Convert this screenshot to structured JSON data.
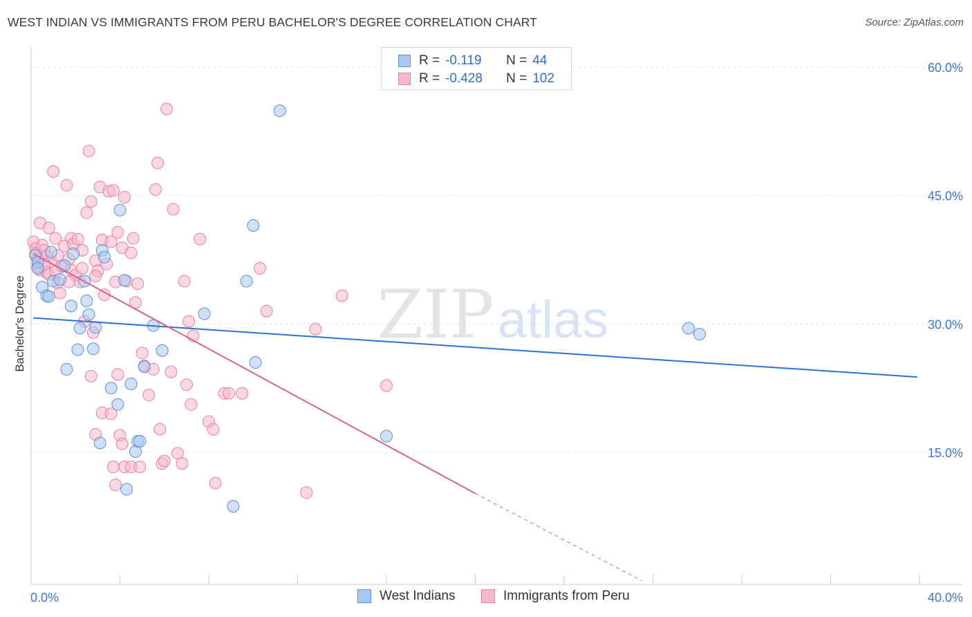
{
  "header": {
    "title": "WEST INDIAN VS IMMIGRANTS FROM PERU BACHELOR'S DEGREE CORRELATION CHART",
    "source": "Source: ZipAtlas.com"
  },
  "colors": {
    "blue_fill": "#a9c8f0",
    "blue_stroke": "#5a8fd8",
    "blue_line": "#2b72d0",
    "pink_fill": "#f6b8cb",
    "pink_stroke": "#e87fa1",
    "pink_line": "#e0608c",
    "grid": "#e3e3e3",
    "axis_label": "#3a76d6"
  },
  "legend": {
    "rows": [
      {
        "r_label": "R =",
        "r_value": "-0.119",
        "n_label": "N =",
        "n_value": "44"
      },
      {
        "r_label": "R =",
        "r_value": "-0.428",
        "n_label": "N =",
        "n_value": "102"
      }
    ]
  },
  "bottom_legend": {
    "items": [
      "West Indians",
      "Immigrants from Peru"
    ]
  },
  "watermark": {
    "zip": "ZIP",
    "atlas": "atlas"
  },
  "chart_data": {
    "type": "scatter",
    "title": "WEST INDIAN VS IMMIGRANTS FROM PERU BACHELOR'S DEGREE CORRELATION CHART",
    "xlabel": "",
    "ylabel": "Bachelor's Degree",
    "xlim": [
      0,
      40
    ],
    "ylim": [
      0,
      62
    ],
    "x_tick_labels": [
      "0.0%",
      "40.0%"
    ],
    "y_ticks": [
      15,
      30,
      45,
      60
    ],
    "y_tick_labels": [
      "15.0%",
      "30.0%",
      "45.0%",
      "60.0%"
    ],
    "grid": true,
    "legend_position": "top-center",
    "series": [
      {
        "name": "West Indians",
        "R": -0.119,
        "N": 44,
        "trend": {
          "x0": 0.1,
          "y0": 30.7,
          "x1": 39.9,
          "y1": 23.8
        },
        "points": [
          [
            0.2,
            38.0
          ],
          [
            0.3,
            37.2
          ],
          [
            0.3,
            36.5
          ],
          [
            0.5,
            34.3
          ],
          [
            0.7,
            33.3
          ],
          [
            0.8,
            33.2
          ],
          [
            0.9,
            38.4
          ],
          [
            1.0,
            35.0
          ],
          [
            1.3,
            35.2
          ],
          [
            1.5,
            36.8
          ],
          [
            1.8,
            32.1
          ],
          [
            1.9,
            38.2
          ],
          [
            2.1,
            27.0
          ],
          [
            2.2,
            29.5
          ],
          [
            2.4,
            35.0
          ],
          [
            2.5,
            32.7
          ],
          [
            2.6,
            31.1
          ],
          [
            2.8,
            27.1
          ],
          [
            2.9,
            29.6
          ],
          [
            3.1,
            16.1
          ],
          [
            3.2,
            38.6
          ],
          [
            3.3,
            37.8
          ],
          [
            3.6,
            22.5
          ],
          [
            3.9,
            20.6
          ],
          [
            4.0,
            43.3
          ],
          [
            4.2,
            35.1
          ],
          [
            4.3,
            10.7
          ],
          [
            4.5,
            23.0
          ],
          [
            4.7,
            15.1
          ],
          [
            4.8,
            16.3
          ],
          [
            4.9,
            16.3
          ],
          [
            5.1,
            25.0
          ],
          [
            5.5,
            29.8
          ],
          [
            5.9,
            26.9
          ],
          [
            7.8,
            31.2
          ],
          [
            9.1,
            8.7
          ],
          [
            9.7,
            35.0
          ],
          [
            10.0,
            41.5
          ],
          [
            10.1,
            25.5
          ],
          [
            11.2,
            54.9
          ],
          [
            16.0,
            16.9
          ],
          [
            29.6,
            29.5
          ],
          [
            30.1,
            28.8
          ],
          [
            1.6,
            24.7
          ]
        ]
      },
      {
        "name": "Immigrants from Peru",
        "R": -0.428,
        "N": 102,
        "trend": {
          "x0": 0.1,
          "y0": 38.2,
          "x1": 20.0,
          "y1": 10.2
        },
        "trend_dashed_to": {
          "x": 27.5,
          "y": 0.0
        },
        "points": [
          [
            0.1,
            39.6
          ],
          [
            0.2,
            38.8
          ],
          [
            0.2,
            38.2
          ],
          [
            0.3,
            37.6
          ],
          [
            0.3,
            36.7
          ],
          [
            0.4,
            41.8
          ],
          [
            0.4,
            36.3
          ],
          [
            0.5,
            39.2
          ],
          [
            0.6,
            38.6
          ],
          [
            0.7,
            37.9
          ],
          [
            0.7,
            36.0
          ],
          [
            0.8,
            41.2
          ],
          [
            0.8,
            35.8
          ],
          [
            0.9,
            37.3
          ],
          [
            1.0,
            47.8
          ],
          [
            1.1,
            40.0
          ],
          [
            1.1,
            36.1
          ],
          [
            1.2,
            34.8
          ],
          [
            1.3,
            33.6
          ],
          [
            1.4,
            36.7
          ],
          [
            1.5,
            39.1
          ],
          [
            1.6,
            46.2
          ],
          [
            1.7,
            37.6
          ],
          [
            1.8,
            36.3
          ],
          [
            1.8,
            40.0
          ],
          [
            1.9,
            39.3
          ],
          [
            2.0,
            35.7
          ],
          [
            2.1,
            39.9
          ],
          [
            2.2,
            34.9
          ],
          [
            2.3,
            38.6
          ],
          [
            2.4,
            30.3
          ],
          [
            2.5,
            43.0
          ],
          [
            2.6,
            50.2
          ],
          [
            2.7,
            44.3
          ],
          [
            2.8,
            29.0
          ],
          [
            2.9,
            37.4
          ],
          [
            3.0,
            36.2
          ],
          [
            3.1,
            46.0
          ],
          [
            3.2,
            39.8
          ],
          [
            3.3,
            33.4
          ],
          [
            3.4,
            37.0
          ],
          [
            3.5,
            45.5
          ],
          [
            3.6,
            39.6
          ],
          [
            3.7,
            45.6
          ],
          [
            3.8,
            34.9
          ],
          [
            3.9,
            40.7
          ],
          [
            4.1,
            38.9
          ],
          [
            4.2,
            44.8
          ],
          [
            4.3,
            35.0
          ],
          [
            4.5,
            38.3
          ],
          [
            4.7,
            32.5
          ],
          [
            4.8,
            34.7
          ],
          [
            5.0,
            26.6
          ],
          [
            5.1,
            25.1
          ],
          [
            5.3,
            21.7
          ],
          [
            5.5,
            24.7
          ],
          [
            5.6,
            45.7
          ],
          [
            5.7,
            48.8
          ],
          [
            5.8,
            17.7
          ],
          [
            5.9,
            13.7
          ],
          [
            6.0,
            14.0
          ],
          [
            6.1,
            55.1
          ],
          [
            6.3,
            24.4
          ],
          [
            6.4,
            43.4
          ],
          [
            6.6,
            14.9
          ],
          [
            6.8,
            13.7
          ],
          [
            6.9,
            35.0
          ],
          [
            7.0,
            22.9
          ],
          [
            7.1,
            30.3
          ],
          [
            7.2,
            20.6
          ],
          [
            7.3,
            28.6
          ],
          [
            7.6,
            39.9
          ],
          [
            8.0,
            18.6
          ],
          [
            8.2,
            17.7
          ],
          [
            8.3,
            11.4
          ],
          [
            8.7,
            21.9
          ],
          [
            8.9,
            21.9
          ],
          [
            9.5,
            21.9
          ],
          [
            10.3,
            36.5
          ],
          [
            10.6,
            31.5
          ],
          [
            12.4,
            10.3
          ],
          [
            12.8,
            29.4
          ],
          [
            14.0,
            33.3
          ],
          [
            16.0,
            22.8
          ],
          [
            2.7,
            23.9
          ],
          [
            3.2,
            19.6
          ],
          [
            3.6,
            19.5
          ],
          [
            3.9,
            24.1
          ],
          [
            4.0,
            17.0
          ],
          [
            4.1,
            16.0
          ],
          [
            4.2,
            13.3
          ],
          [
            4.5,
            13.3
          ],
          [
            3.7,
            13.3
          ],
          [
            3.8,
            11.2
          ],
          [
            4.9,
            13.3
          ],
          [
            2.9,
            17.1
          ],
          [
            1.7,
            34.9
          ],
          [
            2.9,
            35.6
          ],
          [
            4.6,
            40.0
          ],
          [
            0.6,
            37.0
          ],
          [
            1.2,
            38.0
          ],
          [
            2.3,
            36.5
          ]
        ]
      }
    ]
  }
}
